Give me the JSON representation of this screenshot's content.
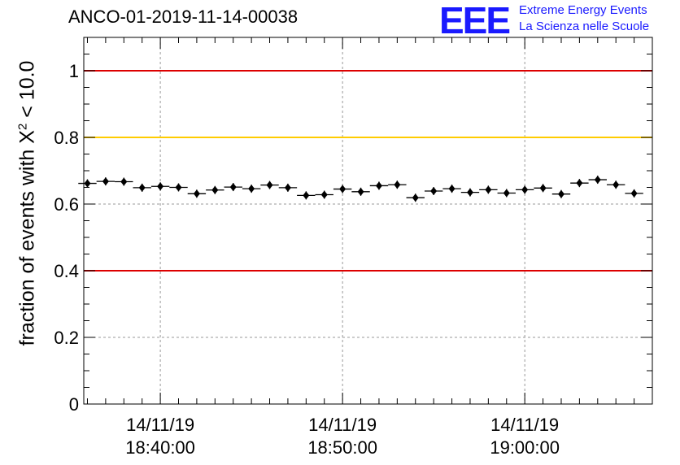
{
  "page": {
    "run_title": "ANCO-01-2019-11-14-00038",
    "logo": {
      "mark": "EEE",
      "line1": "Extreme Energy Events",
      "line2": "La Scienza nelle Scuole"
    },
    "ylabel_main": "fraction of events with X",
    "ylabel_sup": "2",
    "ylabel_tail": " < 10.0"
  },
  "colors": {
    "threshold_red": "#dd0000",
    "threshold_yellow": "#ffcc00",
    "grid": "#999999",
    "markers": "#000000",
    "brand": "#1a1aff"
  },
  "chart_data": {
    "type": "scatter",
    "title": "ANCO-01-2019-11-14-00038",
    "xlabel": "",
    "ylabel": "fraction of events with X^2 < 10.0",
    "ylim": [
      0,
      1.1
    ],
    "grid": true,
    "y_ticks": [
      {
        "value": 0,
        "label": "0"
      },
      {
        "value": 0.2,
        "label": "0.2"
      },
      {
        "value": 0.4,
        "label": "0.4"
      },
      {
        "value": 0.6,
        "label": "0.6"
      },
      {
        "value": 0.8,
        "label": "0.8"
      },
      {
        "value": 1,
        "label": "1"
      }
    ],
    "x_range": [
      "14/11/19 18:35:48",
      "14/11/19 19:07:00"
    ],
    "x_ticks": [
      {
        "time": "14/11/19 18:40:00",
        "date": "14/11/19",
        "clock": "18:40:00"
      },
      {
        "time": "14/11/19 18:50:00",
        "date": "14/11/19",
        "clock": "18:50:00"
      },
      {
        "time": "14/11/19 19:00:00",
        "date": "14/11/19",
        "clock": "19:00:00"
      }
    ],
    "reference_lines": [
      {
        "value": 1.0,
        "color": "#dd0000"
      },
      {
        "value": 0.8,
        "color": "#ffcc00"
      },
      {
        "value": 0.4,
        "color": "#dd0000"
      }
    ],
    "series": [
      {
        "x": [
          "18:36:00",
          "18:37:00",
          "18:38:00",
          "18:39:00",
          "18:40:00",
          "18:41:00",
          "18:42:00",
          "18:43:00",
          "18:44:00",
          "18:45:00",
          "18:46:00",
          "18:47:00",
          "18:48:00",
          "18:49:00",
          "18:50:00",
          "18:51:00",
          "18:52:00",
          "18:53:00",
          "18:54:00",
          "18:55:00",
          "18:56:00",
          "18:57:00",
          "18:58:00",
          "18:59:00",
          "19:00:00",
          "19:01:00",
          "19:02:00",
          "19:03:00",
          "19:04:00",
          "19:05:00",
          "19:06:00"
        ],
        "values": [
          0.662,
          0.668,
          0.667,
          0.649,
          0.653,
          0.65,
          0.631,
          0.642,
          0.651,
          0.646,
          0.657,
          0.649,
          0.626,
          0.628,
          0.645,
          0.637,
          0.655,
          0.658,
          0.619,
          0.639,
          0.646,
          0.635,
          0.643,
          0.633,
          0.643,
          0.648,
          0.63,
          0.663,
          0.673,
          0.658,
          0.632
        ]
      }
    ]
  }
}
